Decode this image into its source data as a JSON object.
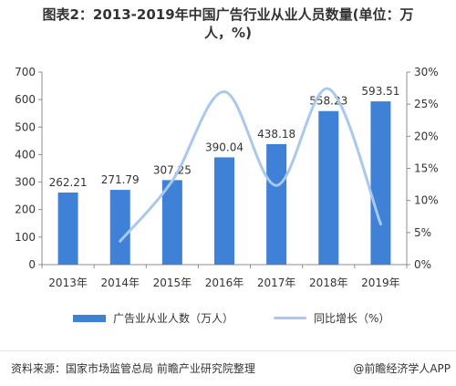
{
  "title_line1": "图表2：2013-2019年中国广告行业从业人员数量(单位：万",
  "title_line2": "人，%)",
  "chart_data": {
    "type": "bar",
    "categories": [
      "2013年",
      "2014年",
      "2015年",
      "2016年",
      "2017年",
      "2018年",
      "2019年"
    ],
    "series": [
      {
        "name": "广告业从业人数（万人）",
        "type": "bar",
        "axis": "left",
        "values": [
          262.21,
          271.79,
          307.25,
          390.04,
          438.18,
          558.23,
          593.51
        ]
      },
      {
        "name": "同比增长（%）",
        "type": "line",
        "axis": "right",
        "values": [
          null,
          3.65,
          13.05,
          26.94,
          12.34,
          27.4,
          6.32
        ]
      }
    ],
    "left_axis": {
      "min": 0,
      "max": 700,
      "ticks": [
        "0",
        "100",
        "200",
        "300",
        "400",
        "500",
        "600",
        "700"
      ]
    },
    "right_axis": {
      "min": 0,
      "max": 30,
      "ticks": [
        "0%",
        "5%",
        "10%",
        "15%",
        "20%",
        "25%",
        "30%"
      ]
    },
    "data_labels": [
      "262.21",
      "271.79",
      "307.25",
      "390.04",
      "438.18",
      "558.23",
      "593.51"
    ],
    "legend_position": "bottom",
    "grid": false,
    "colors": {
      "bar": "#3f81d6",
      "line": "#a9c8ef",
      "axis": "#8c8c8c"
    }
  },
  "legend": {
    "bar_label": "广告业从业人数（万人）",
    "line_label": "同比增长（%）"
  },
  "footer": {
    "source": "资料来源：国家市场监管总局 前瞻产业研究院整理",
    "brand": "@前瞻经济学人APP"
  }
}
